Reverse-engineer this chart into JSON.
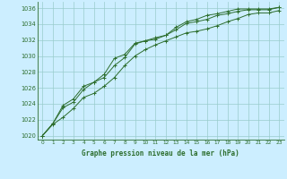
{
  "xlabel": "Graphe pression niveau de la mer (hPa)",
  "bg_color": "#cceeff",
  "grid_color": "#99cccc",
  "line_color": "#2d6e2d",
  "ylim": [
    1019.5,
    1036.8
  ],
  "xlim": [
    -0.5,
    23.5
  ],
  "yticks": [
    1020,
    1022,
    1024,
    1026,
    1028,
    1030,
    1032,
    1034,
    1036
  ],
  "xticks": [
    0,
    1,
    2,
    3,
    4,
    5,
    6,
    7,
    8,
    9,
    10,
    11,
    12,
    13,
    14,
    15,
    16,
    17,
    18,
    19,
    20,
    21,
    22,
    23
  ],
  "series1": [
    1020.0,
    1021.4,
    1022.3,
    1023.4,
    1024.8,
    1025.3,
    1026.2,
    1027.3,
    1028.8,
    1030.0,
    1030.8,
    1031.4,
    1031.9,
    1032.4,
    1032.9,
    1033.1,
    1033.4,
    1033.8,
    1034.3,
    1034.7,
    1035.2,
    1035.4,
    1035.4,
    1035.7
  ],
  "series2": [
    1020.0,
    1021.5,
    1023.5,
    1024.2,
    1025.8,
    1026.7,
    1027.3,
    1028.8,
    1029.8,
    1031.5,
    1031.9,
    1032.3,
    1032.6,
    1033.3,
    1034.1,
    1034.3,
    1034.6,
    1035.1,
    1035.3,
    1035.6,
    1035.8,
    1035.8,
    1035.8,
    1036.1
  ],
  "series3": [
    1020.0,
    1021.5,
    1023.8,
    1024.6,
    1026.2,
    1026.7,
    1027.7,
    1029.7,
    1030.2,
    1031.6,
    1031.9,
    1032.1,
    1032.6,
    1033.6,
    1034.3,
    1034.6,
    1035.1,
    1035.3,
    1035.6,
    1035.9,
    1035.9,
    1035.9,
    1035.9,
    1036.1
  ]
}
